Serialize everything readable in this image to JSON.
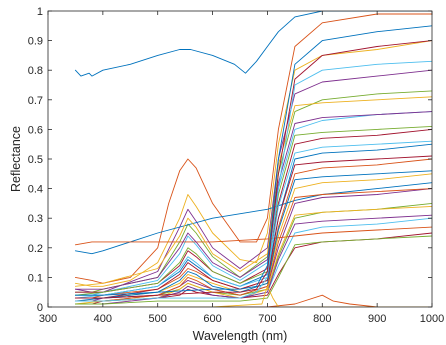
{
  "chart_data": {
    "type": "line",
    "xlabel": "Wavelength (nm)",
    "ylabel": "Reflectance",
    "xlim": [
      300,
      1000
    ],
    "ylim": [
      0,
      1
    ],
    "x_ticks": [
      300,
      400,
      500,
      600,
      700,
      800,
      900,
      1000
    ],
    "y_ticks": [
      0,
      0.1,
      0.2,
      0.3,
      0.4,
      0.5,
      0.6,
      0.7,
      0.8,
      0.9,
      1
    ],
    "grid": false,
    "legend": "none",
    "colors": [
      "#0072BD",
      "#D95319",
      "#EDB120",
      "#7E2F8E",
      "#77AC30",
      "#4DBEEE",
      "#A2142F"
    ],
    "series_note_count": 100,
    "series": [
      {
        "x": [
          350,
          360,
          375,
          380,
          400,
          450,
          500,
          540,
          560,
          600,
          640,
          660,
          680,
          700,
          720,
          750,
          800,
          850,
          900,
          950,
          1000
        ],
        "y": [
          0.8,
          0.78,
          0.79,
          0.78,
          0.8,
          0.82,
          0.85,
          0.87,
          0.87,
          0.85,
          0.82,
          0.79,
          0.83,
          0.88,
          0.93,
          0.98,
          1.0,
          1.0,
          1.0,
          1.0,
          1.0
        ]
      },
      {
        "x": [
          350,
          380,
          400,
          450,
          500,
          520,
          540,
          555,
          570,
          600,
          650,
          680,
          700,
          720,
          750,
          800,
          900,
          1000
        ],
        "y": [
          0.1,
          0.09,
          0.08,
          0.1,
          0.2,
          0.35,
          0.46,
          0.5,
          0.47,
          0.35,
          0.22,
          0.22,
          0.3,
          0.6,
          0.88,
          0.96,
          0.99,
          0.99
        ]
      },
      {
        "x": [
          350,
          380,
          400,
          450,
          500,
          540,
          555,
          570,
          600,
          650,
          680,
          700,
          720,
          750,
          800,
          900,
          1000
        ],
        "y": [
          0.08,
          0.07,
          0.07,
          0.09,
          0.15,
          0.3,
          0.38,
          0.34,
          0.25,
          0.16,
          0.15,
          0.25,
          0.55,
          0.8,
          0.85,
          0.87,
          0.9
        ]
      },
      {
        "x": [
          350,
          380,
          400,
          500,
          540,
          555,
          570,
          600,
          650,
          700,
          720,
          750,
          800,
          900,
          1000
        ],
        "y": [
          0.06,
          0.05,
          0.05,
          0.12,
          0.27,
          0.33,
          0.29,
          0.2,
          0.13,
          0.2,
          0.5,
          0.72,
          0.76,
          0.78,
          0.8
        ]
      },
      {
        "x": [
          350,
          380,
          400,
          500,
          540,
          555,
          570,
          600,
          650,
          700,
          720,
          750,
          800,
          900,
          1000
        ],
        "y": [
          0.05,
          0.05,
          0.06,
          0.1,
          0.22,
          0.28,
          0.25,
          0.17,
          0.1,
          0.17,
          0.45,
          0.66,
          0.7,
          0.72,
          0.73
        ]
      },
      {
        "x": [
          350,
          380,
          400,
          500,
          540,
          555,
          570,
          600,
          650,
          700,
          720,
          750,
          800,
          900,
          1000
        ],
        "y": [
          0.04,
          0.04,
          0.05,
          0.09,
          0.18,
          0.24,
          0.21,
          0.14,
          0.09,
          0.15,
          0.4,
          0.6,
          0.63,
          0.65,
          0.66
        ]
      },
      {
        "x": [
          350,
          380,
          400,
          500,
          540,
          555,
          570,
          600,
          650,
          700,
          720,
          750,
          800,
          900,
          1000
        ],
        "y": [
          0.05,
          0.05,
          0.05,
          0.08,
          0.14,
          0.19,
          0.17,
          0.12,
          0.08,
          0.13,
          0.35,
          0.55,
          0.57,
          0.58,
          0.6
        ]
      },
      {
        "x": [
          350,
          380,
          400,
          500,
          540,
          555,
          570,
          600,
          650,
          700,
          720,
          750,
          800,
          900,
          1000
        ],
        "y": [
          0.04,
          0.04,
          0.04,
          0.07,
          0.12,
          0.16,
          0.14,
          0.1,
          0.07,
          0.11,
          0.3,
          0.5,
          0.52,
          0.53,
          0.55
        ]
      },
      {
        "x": [
          350,
          380,
          400,
          500,
          540,
          555,
          570,
          600,
          650,
          700,
          720,
          750,
          800,
          900,
          1000
        ],
        "y": [
          0.03,
          0.03,
          0.04,
          0.06,
          0.1,
          0.13,
          0.12,
          0.09,
          0.06,
          0.09,
          0.27,
          0.45,
          0.47,
          0.48,
          0.5
        ]
      },
      {
        "x": [
          350,
          380,
          400,
          500,
          540,
          555,
          570,
          600,
          650,
          700,
          720,
          750,
          800,
          900,
          1000
        ],
        "y": [
          0.03,
          0.03,
          0.03,
          0.05,
          0.08,
          0.11,
          0.1,
          0.08,
          0.05,
          0.08,
          0.24,
          0.4,
          0.42,
          0.43,
          0.45
        ]
      },
      {
        "x": [
          350,
          380,
          400,
          500,
          540,
          555,
          570,
          600,
          650,
          700,
          720,
          750,
          800,
          900,
          1000
        ],
        "y": [
          0.02,
          0.02,
          0.03,
          0.04,
          0.07,
          0.09,
          0.08,
          0.06,
          0.04,
          0.07,
          0.2,
          0.35,
          0.37,
          0.38,
          0.4
        ]
      },
      {
        "x": [
          350,
          380,
          400,
          500,
          540,
          555,
          570,
          600,
          650,
          700,
          720,
          750,
          800,
          900,
          1000
        ],
        "y": [
          0.02,
          0.02,
          0.02,
          0.04,
          0.06,
          0.08,
          0.07,
          0.05,
          0.04,
          0.06,
          0.17,
          0.3,
          0.32,
          0.33,
          0.35
        ]
      },
      {
        "x": [
          350,
          380,
          400,
          500,
          540,
          555,
          570,
          600,
          650,
          700,
          720,
          750,
          800,
          900,
          1000
        ],
        "y": [
          0.02,
          0.02,
          0.02,
          0.03,
          0.05,
          0.07,
          0.06,
          0.04,
          0.03,
          0.05,
          0.14,
          0.25,
          0.27,
          0.28,
          0.3
        ]
      },
      {
        "x": [
          350,
          380,
          400,
          500,
          540,
          555,
          570,
          600,
          650,
          700,
          720,
          750,
          800,
          900,
          1000
        ],
        "y": [
          0.01,
          0.01,
          0.02,
          0.03,
          0.04,
          0.06,
          0.05,
          0.04,
          0.03,
          0.04,
          0.11,
          0.2,
          0.22,
          0.23,
          0.25
        ]
      },
      {
        "x": [
          350,
          380,
          400,
          500,
          600,
          700,
          750,
          800,
          900,
          1000
        ],
        "y": [
          0.19,
          0.18,
          0.19,
          0.25,
          0.3,
          0.33,
          0.36,
          0.38,
          0.4,
          0.42
        ]
      },
      {
        "x": [
          350,
          380,
          400,
          500,
          600,
          700,
          750,
          800,
          900,
          1000
        ],
        "y": [
          0.21,
          0.22,
          0.22,
          0.22,
          0.22,
          0.23,
          0.24,
          0.25,
          0.26,
          0.27
        ]
      },
      {
        "x": [
          350,
          400,
          500,
          540,
          555,
          570,
          600,
          650,
          700,
          720,
          750,
          800,
          900,
          1000
        ],
        "y": [
          0.07,
          0.08,
          0.13,
          0.24,
          0.3,
          0.27,
          0.18,
          0.12,
          0.18,
          0.48,
          0.68,
          0.69,
          0.7,
          0.71
        ]
      },
      {
        "x": [
          350,
          400,
          500,
          540,
          555,
          570,
          600,
          650,
          700,
          720,
          750,
          800,
          900,
          1000
        ],
        "y": [
          0.06,
          0.06,
          0.1,
          0.2,
          0.25,
          0.22,
          0.15,
          0.1,
          0.16,
          0.42,
          0.62,
          0.64,
          0.65,
          0.66
        ]
      },
      {
        "x": [
          350,
          400,
          500,
          540,
          555,
          570,
          600,
          650,
          700,
          720,
          750,
          800,
          900,
          1000
        ],
        "y": [
          0.04,
          0.05,
          0.08,
          0.15,
          0.2,
          0.18,
          0.12,
          0.08,
          0.12,
          0.38,
          0.58,
          0.59,
          0.6,
          0.61
        ]
      },
      {
        "x": [
          350,
          400,
          500,
          540,
          555,
          570,
          600,
          650,
          700,
          720,
          750,
          800,
          900,
          1000
        ],
        "y": [
          0.03,
          0.04,
          0.07,
          0.13,
          0.17,
          0.15,
          0.1,
          0.07,
          0.1,
          0.34,
          0.52,
          0.54,
          0.55,
          0.56
        ]
      },
      {
        "x": [
          350,
          400,
          500,
          540,
          555,
          570,
          600,
          650,
          700,
          720,
          750,
          800,
          900,
          1000
        ],
        "y": [
          0.03,
          0.03,
          0.06,
          0.11,
          0.15,
          0.13,
          0.09,
          0.06,
          0.09,
          0.3,
          0.48,
          0.49,
          0.5,
          0.51
        ]
      },
      {
        "x": [
          350,
          400,
          500,
          540,
          555,
          570,
          600,
          650,
          700,
          720,
          750,
          800,
          900,
          1000
        ],
        "y": [
          0.02,
          0.03,
          0.05,
          0.09,
          0.12,
          0.11,
          0.07,
          0.05,
          0.08,
          0.26,
          0.43,
          0.44,
          0.45,
          0.46
        ]
      },
      {
        "x": [
          350,
          400,
          500,
          540,
          555,
          570,
          600,
          650,
          700,
          720,
          750,
          800,
          900,
          1000
        ],
        "y": [
          0.02,
          0.02,
          0.04,
          0.07,
          0.1,
          0.09,
          0.06,
          0.04,
          0.07,
          0.22,
          0.37,
          0.38,
          0.39,
          0.4
        ]
      },
      {
        "x": [
          350,
          400,
          500,
          540,
          555,
          570,
          600,
          650,
          700,
          720,
          750,
          800,
          900,
          1000
        ],
        "y": [
          0.01,
          0.02,
          0.03,
          0.06,
          0.08,
          0.07,
          0.05,
          0.03,
          0.06,
          0.18,
          0.31,
          0.32,
          0.33,
          0.34
        ]
      },
      {
        "x": [
          350,
          400,
          500,
          540,
          555,
          570,
          600,
          650,
          700,
          720,
          750,
          800,
          900,
          1000
        ],
        "y": [
          0.01,
          0.01,
          0.03,
          0.05,
          0.07,
          0.06,
          0.04,
          0.03,
          0.05,
          0.16,
          0.28,
          0.29,
          0.3,
          0.31
        ]
      },
      {
        "x": [
          350,
          400,
          500,
          600,
          650,
          700,
          720,
          750,
          800,
          900,
          1000
        ],
        "y": [
          0.01,
          0.01,
          0.02,
          0.02,
          0.02,
          0.03,
          0.1,
          0.21,
          0.22,
          0.23,
          0.24
        ]
      },
      {
        "x": [
          350,
          400,
          500,
          600,
          650,
          680,
          700,
          720,
          750,
          800,
          900,
          1000
        ],
        "y": [
          0.02,
          0.02,
          0.03,
          0.03,
          0.03,
          0.05,
          0.1,
          0.4,
          0.75,
          0.8,
          0.82,
          0.83
        ]
      },
      {
        "x": [
          350,
          400,
          500,
          600,
          650,
          680,
          700,
          720,
          750,
          800,
          900,
          1000
        ],
        "y": [
          0.03,
          0.03,
          0.04,
          0.05,
          0.05,
          0.06,
          0.12,
          0.45,
          0.77,
          0.85,
          0.88,
          0.9
        ]
      },
      {
        "x": [
          350,
          400,
          500,
          600,
          650,
          680,
          700,
          720,
          750,
          800,
          900,
          1000
        ],
        "y": [
          0.04,
          0.04,
          0.05,
          0.06,
          0.06,
          0.07,
          0.14,
          0.5,
          0.82,
          0.9,
          0.93,
          0.95
        ]
      },
      {
        "x": [
          350,
          400,
          500,
          600,
          700,
          750,
          800,
          820,
          850,
          900,
          1000
        ],
        "y": [
          0.0,
          0.0,
          0.0,
          0.0,
          0.0,
          0.01,
          0.04,
          0.02,
          0.01,
          0.0,
          0.0
        ]
      },
      {
        "x": [
          350,
          400,
          500,
          600,
          690,
          700,
          710,
          720,
          750,
          800,
          900,
          1000
        ],
        "y": [
          0.0,
          0.0,
          0.0,
          0.0,
          0.01,
          0.07,
          0.03,
          0.0,
          0.0,
          0.0,
          0.0,
          0.0
        ]
      }
    ]
  }
}
